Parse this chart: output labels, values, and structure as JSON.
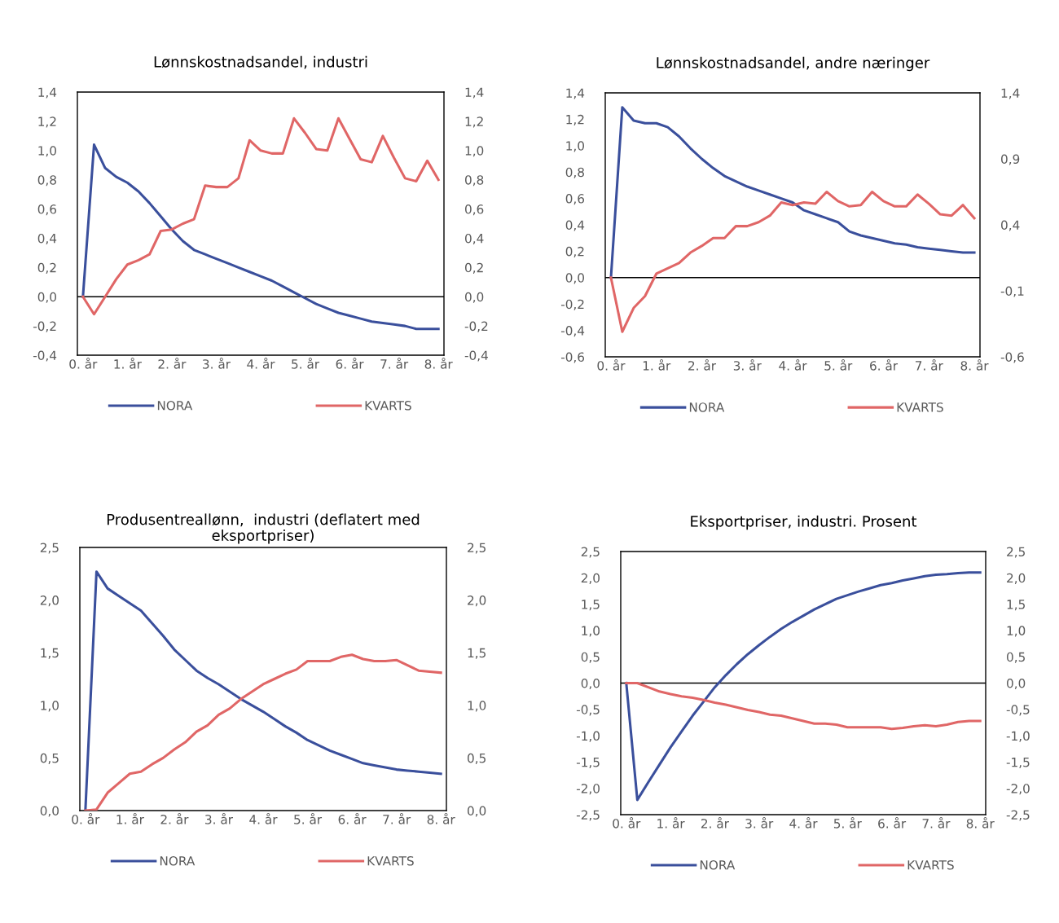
{
  "chart_data": [
    {
      "type": "line",
      "title": "Lønnskostnadsandel, industri",
      "categories": [
        "0. år",
        null,
        null,
        null,
        "1. år",
        null,
        null,
        null,
        "2. år",
        null,
        null,
        null,
        "3. år",
        null,
        null,
        null,
        "4. år",
        null,
        null,
        null,
        "5. år",
        null,
        null,
        null,
        "6. år",
        null,
        null,
        null,
        "7. år",
        null,
        null,
        null,
        "8. år"
      ],
      "series": [
        {
          "name": "NORA",
          "color": "#3a4f9c",
          "values": [
            0,
            1.04,
            0.88,
            0.82,
            0.78,
            0.72,
            0.64,
            0.55,
            0.46,
            0.38,
            0.32,
            0.29,
            0.26,
            0.23,
            0.2,
            0.17,
            0.14,
            0.11,
            0.07,
            0.03,
            -0.01,
            -0.05,
            -0.08,
            -0.11,
            -0.13,
            -0.15,
            -0.17,
            -0.18,
            -0.19,
            -0.2,
            -0.22,
            -0.22,
            -0.22
          ]
        },
        {
          "name": "KVARTS",
          "color": "#e06666",
          "axis": "y2",
          "values": [
            0,
            -0.12,
            0.0,
            0.12,
            0.22,
            0.25,
            0.29,
            0.45,
            0.46,
            0.5,
            0.53,
            0.76,
            0.75,
            0.75,
            0.81,
            1.07,
            1.0,
            0.98,
            0.98,
            1.22,
            1.12,
            1.01,
            1.0,
            1.22,
            1.08,
            0.94,
            0.92,
            1.1,
            0.95,
            0.81,
            0.79,
            0.93,
            0.8
          ]
        }
      ],
      "ylim": [
        -0.4,
        1.4
      ],
      "yticks": [
        {
          "value": -0.4,
          "label": "-0,4"
        },
        {
          "value": -0.2,
          "label": "-0,2"
        },
        {
          "value": 0,
          "label": "0,0"
        },
        {
          "value": 0.2,
          "label": "0,2"
        },
        {
          "value": 0.4,
          "label": "0,4"
        },
        {
          "value": 0.6,
          "label": "0,6"
        },
        {
          "value": 0.8,
          "label": "0,8"
        },
        {
          "value": 1.0,
          "label": "1,0"
        },
        {
          "value": 1.2,
          "label": "1,2"
        },
        {
          "value": 1.4,
          "label": "1,4"
        }
      ],
      "y2lim": [
        -0.4,
        1.4
      ],
      "y2ticks": [
        {
          "value": -0.4,
          "label": "-0,4"
        },
        {
          "value": -0.2,
          "label": "-0,2"
        },
        {
          "value": 0,
          "label": "0,0"
        },
        {
          "value": 0.2,
          "label": "0,2"
        },
        {
          "value": 0.4,
          "label": "0,4"
        },
        {
          "value": 0.6,
          "label": "0,6"
        },
        {
          "value": 0.8,
          "label": "0,8"
        },
        {
          "value": 1.0,
          "label": "1,0"
        },
        {
          "value": 1.2,
          "label": "1,2"
        },
        {
          "value": 1.4,
          "label": "1,4"
        }
      ],
      "ref_lines": [
        {
          "axis": "y",
          "value": 0,
          "color": "#000000"
        }
      ],
      "legend": "bottom",
      "grid": false
    },
    {
      "type": "line",
      "title": "Lønnskostnadsandel, andre næringer",
      "categories": [
        "0. år",
        null,
        null,
        null,
        "1. år",
        null,
        null,
        null,
        "2. år",
        null,
        null,
        null,
        "3. år",
        null,
        null,
        null,
        "4. år",
        null,
        null,
        null,
        "5. år",
        null,
        null,
        null,
        "6. år",
        null,
        null,
        null,
        "7. år",
        null,
        null,
        null,
        "8. år"
      ],
      "series": [
        {
          "name": "NORA",
          "color": "#3a4f9c",
          "values": [
            0,
            1.29,
            1.19,
            1.17,
            1.17,
            1.14,
            1.07,
            0.98,
            0.9,
            0.83,
            0.77,
            0.73,
            0.69,
            0.66,
            0.63,
            0.6,
            0.57,
            0.51,
            0.48,
            0.45,
            0.42,
            0.35,
            0.32,
            0.3,
            0.28,
            0.26,
            0.25,
            0.23,
            0.22,
            0.21,
            0.2,
            0.19,
            0.19
          ]
        },
        {
          "name": "KVARTS",
          "color": "#e06666",
          "axis": "y2",
          "values": [
            0,
            -0.41,
            -0.23,
            -0.14,
            0.03,
            0.07,
            0.11,
            0.19,
            0.24,
            0.3,
            0.3,
            0.39,
            0.39,
            0.42,
            0.47,
            0.57,
            0.55,
            0.57,
            0.56,
            0.65,
            0.58,
            0.54,
            0.55,
            0.65,
            0.58,
            0.54,
            0.54,
            0.63,
            0.56,
            0.48,
            0.47,
            0.55,
            0.45
          ]
        }
      ],
      "ylim": [
        -0.6,
        1.4
      ],
      "yticks": [
        {
          "value": -0.6,
          "label": "-0,6"
        },
        {
          "value": -0.4,
          "label": "-0,4"
        },
        {
          "value": -0.2,
          "label": "-0,2"
        },
        {
          "value": 0,
          "label": "0,0"
        },
        {
          "value": 0.2,
          "label": "0,2"
        },
        {
          "value": 0.4,
          "label": "0,4"
        },
        {
          "value": 0.6,
          "label": "0,6"
        },
        {
          "value": 0.8,
          "label": "0,8"
        },
        {
          "value": 1.0,
          "label": "1,0"
        },
        {
          "value": 1.2,
          "label": "1,2"
        },
        {
          "value": 1.4,
          "label": "1,4"
        }
      ],
      "y2lim": [
        -0.6,
        1.4
      ],
      "y2ticks": [
        {
          "value": -0.6,
          "label": "-0,6"
        },
        {
          "value": -0.1,
          "label": "-0,1"
        },
        {
          "value": 0.4,
          "label": "0,4"
        },
        {
          "value": 0.9,
          "label": "0,9"
        },
        {
          "value": 1.4,
          "label": "1,4"
        }
      ],
      "ref_lines": [
        {
          "axis": "y",
          "value": 0,
          "color": "#000000"
        }
      ],
      "legend": "bottom",
      "grid": false
    },
    {
      "type": "line",
      "title": "Produsentreallønn,  industri (deflatert med eksportpriser)",
      "categories": [
        "0. år",
        null,
        null,
        null,
        "1. år",
        null,
        null,
        null,
        "2. år",
        null,
        null,
        null,
        "3. år",
        null,
        null,
        null,
        "4. år",
        null,
        null,
        null,
        "5. år",
        null,
        null,
        null,
        "6. år",
        null,
        null,
        null,
        "7. år",
        null,
        null,
        null,
        "8. år"
      ],
      "series": [
        {
          "name": "NORA",
          "color": "#3a4f9c",
          "values": [
            0,
            2.27,
            2.11,
            2.04,
            1.97,
            1.9,
            1.78,
            1.66,
            1.53,
            1.43,
            1.33,
            1.26,
            1.2,
            1.13,
            1.06,
            1.0,
            0.94,
            0.87,
            0.8,
            0.74,
            0.67,
            0.62,
            0.57,
            0.53,
            0.49,
            0.45,
            0.43,
            0.41,
            0.39,
            0.38,
            0.37,
            0.36,
            0.35
          ]
        },
        {
          "name": "KVARTS",
          "color": "#e06666",
          "axis": "y2",
          "values": [
            0,
            0.01,
            0.17,
            0.26,
            0.35,
            0.37,
            0.44,
            0.5,
            0.58,
            0.65,
            0.75,
            0.81,
            0.91,
            0.97,
            1.06,
            1.13,
            1.2,
            1.25,
            1.3,
            1.34,
            1.42,
            1.42,
            1.42,
            1.46,
            1.48,
            1.44,
            1.42,
            1.42,
            1.43,
            1.38,
            1.33,
            1.32,
            1.31
          ]
        }
      ],
      "ylim": [
        0,
        2.5
      ],
      "yticks": [
        {
          "value": 0,
          "label": "0,0"
        },
        {
          "value": 0.5,
          "label": "0,5"
        },
        {
          "value": 1.0,
          "label": "1,0"
        },
        {
          "value": 1.5,
          "label": "1,5"
        },
        {
          "value": 2.0,
          "label": "2,0"
        },
        {
          "value": 2.5,
          "label": "2,5"
        }
      ],
      "y2lim": [
        0,
        2.5
      ],
      "y2ticks": [
        {
          "value": 0,
          "label": "0,0"
        },
        {
          "value": 0.5,
          "label": "0,5"
        },
        {
          "value": 1.0,
          "label": "1,0"
        },
        {
          "value": 1.5,
          "label": "1,5"
        },
        {
          "value": 2.0,
          "label": "2,0"
        },
        {
          "value": 2.5,
          "label": "2,5"
        }
      ],
      "legend": "bottom",
      "grid": false
    },
    {
      "type": "line",
      "title": "Eksportpriser, industri. Prosent",
      "categories": [
        "0. år",
        null,
        null,
        null,
        "1. år",
        null,
        null,
        null,
        "2. år",
        null,
        null,
        null,
        "3. år",
        null,
        null,
        null,
        "4. år",
        null,
        null,
        null,
        "5. år",
        null,
        null,
        null,
        "6. år",
        null,
        null,
        null,
        "7. år",
        null,
        null,
        null,
        "8. år"
      ],
      "series": [
        {
          "name": "NORA",
          "color": "#3a4f9c",
          "values": [
            0,
            -2.22,
            -1.88,
            -1.55,
            -1.22,
            -0.92,
            -0.62,
            -0.35,
            -0.08,
            0.15,
            0.36,
            0.55,
            0.72,
            0.88,
            1.03,
            1.16,
            1.28,
            1.4,
            1.5,
            1.6,
            1.67,
            1.74,
            1.8,
            1.86,
            1.9,
            1.95,
            1.99,
            2.03,
            2.06,
            2.07,
            2.09,
            2.1,
            2.1
          ]
        },
        {
          "name": "KVARTS",
          "color": "#e06666",
          "axis": "y2",
          "values": [
            0,
            0.0,
            -0.08,
            -0.16,
            -0.21,
            -0.25,
            -0.28,
            -0.32,
            -0.37,
            -0.41,
            -0.46,
            -0.51,
            -0.55,
            -0.6,
            -0.62,
            -0.67,
            -0.72,
            -0.77,
            -0.77,
            -0.79,
            -0.84,
            -0.84,
            -0.84,
            -0.84,
            -0.87,
            -0.85,
            -0.82,
            -0.8,
            -0.82,
            -0.79,
            -0.74,
            -0.72,
            -0.72
          ]
        }
      ],
      "ylim": [
        -2.5,
        2.5
      ],
      "yticks": [
        {
          "value": -2.5,
          "label": "-2,5"
        },
        {
          "value": -2.0,
          "label": "-2,0"
        },
        {
          "value": -1.5,
          "label": "-1,5"
        },
        {
          "value": -1.0,
          "label": "-1,0"
        },
        {
          "value": -0.5,
          "label": "-0,5"
        },
        {
          "value": 0,
          "label": "0,0"
        },
        {
          "value": 0.5,
          "label": "0,5"
        },
        {
          "value": 1.0,
          "label": "1,0"
        },
        {
          "value": 1.5,
          "label": "1,5"
        },
        {
          "value": 2.0,
          "label": "2,0"
        },
        {
          "value": 2.5,
          "label": "2,5"
        }
      ],
      "y2lim": [
        -2.5,
        2.5
      ],
      "y2ticks": [
        {
          "value": -2.5,
          "label": "-2,5"
        },
        {
          "value": -2.0,
          "label": "-2,0"
        },
        {
          "value": -1.5,
          "label": "-1,5"
        },
        {
          "value": -1.0,
          "label": "-1,0"
        },
        {
          "value": -0.5,
          "label": "-0,5"
        },
        {
          "value": 0,
          "label": "0,0"
        },
        {
          "value": 0.5,
          "label": "0,5"
        },
        {
          "value": 1.0,
          "label": "1,0"
        },
        {
          "value": 1.5,
          "label": "1,5"
        },
        {
          "value": 2.0,
          "label": "2,0"
        },
        {
          "value": 2.5,
          "label": "2,5"
        }
      ],
      "ref_lines": [
        {
          "axis": "y",
          "value": 0,
          "color": "#000000"
        }
      ],
      "legend": "bottom",
      "grid": false
    }
  ]
}
